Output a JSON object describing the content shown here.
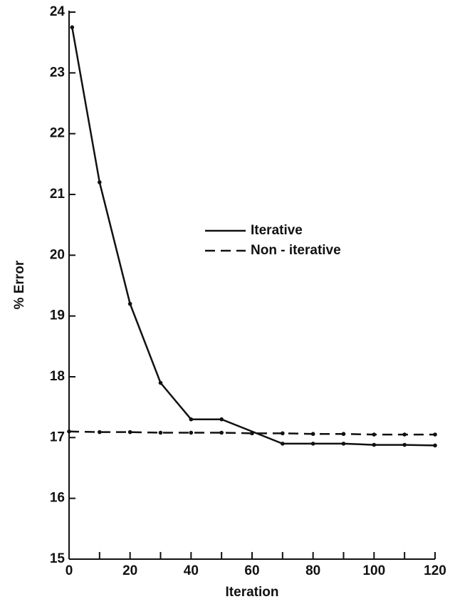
{
  "chart_data": {
    "type": "line",
    "x_label": "Iteration",
    "y_label": "% Error",
    "series": [
      {
        "name": "Iterative",
        "color": "#111111",
        "dash": "solid",
        "x": [
          1,
          10,
          20,
          30,
          40,
          50,
          70,
          80,
          90,
          100,
          110,
          120
        ],
        "values": [
          23.75,
          21.2,
          19.2,
          17.9,
          17.3,
          17.3,
          16.9,
          16.9,
          16.9,
          16.88,
          16.88,
          16.87
        ]
      },
      {
        "name": "Non - iterative",
        "color": "#111111",
        "dash": "dashed",
        "x": [
          0,
          10,
          20,
          30,
          40,
          50,
          60,
          70,
          80,
          90,
          100,
          110,
          120
        ],
        "values": [
          17.1,
          17.09,
          17.09,
          17.08,
          17.08,
          17.08,
          17.07,
          17.07,
          17.06,
          17.06,
          17.05,
          17.05,
          17.05
        ]
      }
    ],
    "xlim": [
      0,
      120
    ],
    "ylim": [
      15,
      24
    ],
    "xticks": [
      0,
      20,
      40,
      60,
      80,
      100,
      120
    ],
    "x_minor_ticks": [
      10,
      30,
      50,
      70,
      90,
      110
    ],
    "yticks": [
      15,
      16,
      17,
      18,
      19,
      20,
      21,
      22,
      23,
      24
    ],
    "legend": "center"
  }
}
